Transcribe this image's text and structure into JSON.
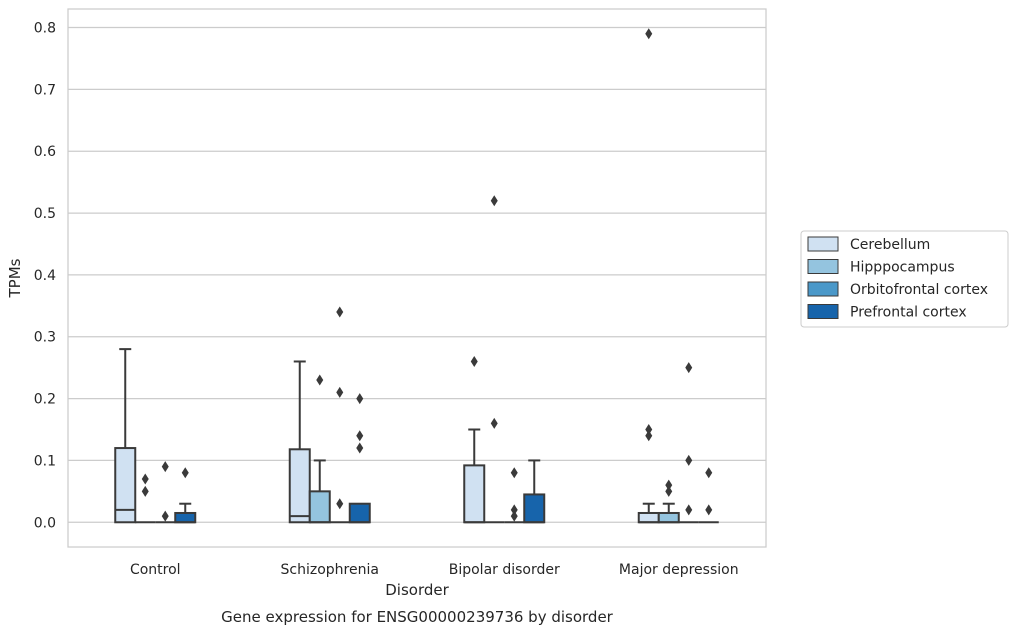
{
  "chart_data": {
    "type": "box",
    "title": "Gene expression for ENSG00000239736 by disorder",
    "xlabel": "Disorder",
    "ylabel": "TPMs",
    "ylim": [
      -0.04,
      0.83
    ],
    "yticks": [
      0.0,
      0.1,
      0.2,
      0.3,
      0.4,
      0.5,
      0.6,
      0.7,
      0.8
    ],
    "ytick_labels": [
      "0.0",
      "0.1",
      "0.2",
      "0.3",
      "0.4",
      "0.5",
      "0.6",
      "0.7",
      "0.8"
    ],
    "grid": true,
    "legend_position": "right",
    "categories": [
      "Control",
      "Schizophrenia",
      "Bipolar disorder",
      "Major depression"
    ],
    "series": [
      {
        "name": "Cerebellum",
        "color": "#d0e1f2",
        "boxes": [
          {
            "q1": 0.0,
            "median": 0.02,
            "q3": 0.12,
            "whislo": 0.0,
            "whishi": 0.28,
            "fliers": []
          },
          {
            "q1": 0.0,
            "median": 0.01,
            "q3": 0.118,
            "whislo": 0.0,
            "whishi": 0.26,
            "fliers": []
          },
          {
            "q1": 0.0,
            "median": 0.0,
            "q3": 0.092,
            "whislo": 0.0,
            "whishi": 0.15,
            "fliers": [
              0.26
            ]
          },
          {
            "q1": 0.0,
            "median": 0.0,
            "q3": 0.015,
            "whislo": 0.0,
            "whishi": 0.03,
            "fliers": [
              0.14,
              0.15,
              0.79
            ]
          }
        ]
      },
      {
        "name": "Hipppocampus",
        "color": "#94c4df",
        "boxes": [
          {
            "q1": 0.0,
            "median": 0.0,
            "q3": 0.0,
            "whislo": 0.0,
            "whishi": 0.0,
            "fliers": [
              0.05,
              0.07
            ]
          },
          {
            "q1": 0.0,
            "median": 0.0,
            "q3": 0.05,
            "whislo": 0.0,
            "whishi": 0.1,
            "fliers": [
              0.23
            ]
          },
          {
            "q1": 0.0,
            "median": 0.0,
            "q3": 0.0,
            "whislo": 0.0,
            "whishi": 0.0,
            "fliers": [
              0.52,
              0.16
            ]
          },
          {
            "q1": 0.0,
            "median": 0.0,
            "q3": 0.015,
            "whislo": 0.0,
            "whishi": 0.03,
            "fliers": [
              0.05,
              0.06
            ]
          }
        ]
      },
      {
        "name": "Orbitofrontal cortex",
        "color": "#4a98c9",
        "boxes": [
          {
            "q1": 0.0,
            "median": 0.0,
            "q3": 0.0,
            "whislo": 0.0,
            "whishi": 0.0,
            "fliers": [
              0.01,
              0.09
            ]
          },
          {
            "q1": 0.0,
            "median": 0.0,
            "q3": 0.0,
            "whislo": 0.0,
            "whishi": 0.0,
            "fliers": [
              0.03,
              0.21,
              0.34
            ]
          },
          {
            "q1": 0.0,
            "median": 0.0,
            "q3": 0.0,
            "whislo": 0.0,
            "whishi": 0.0,
            "fliers": [
              0.01,
              0.02,
              0.08
            ]
          },
          {
            "q1": 0.0,
            "median": 0.0,
            "q3": 0.0,
            "whislo": 0.0,
            "whishi": 0.0,
            "fliers": [
              0.02,
              0.1,
              0.25
            ]
          }
        ]
      },
      {
        "name": "Prefrontal cortex",
        "color": "#1764ab",
        "boxes": [
          {
            "q1": 0.0,
            "median": 0.0,
            "q3": 0.015,
            "whislo": 0.0,
            "whishi": 0.03,
            "fliers": [
              0.08
            ]
          },
          {
            "q1": 0.0,
            "median": 0.0,
            "q3": 0.03,
            "whislo": 0.0,
            "whishi": 0.03,
            "fliers": [
              0.12,
              0.14,
              0.2
            ]
          },
          {
            "q1": 0.0,
            "median": 0.0,
            "q3": 0.045,
            "whislo": 0.0,
            "whishi": 0.1,
            "fliers": []
          },
          {
            "q1": 0.0,
            "median": 0.0,
            "q3": 0.0,
            "whislo": 0.0,
            "whishi": 0.0,
            "fliers": [
              0.02,
              0.08
            ]
          }
        ]
      }
    ]
  }
}
